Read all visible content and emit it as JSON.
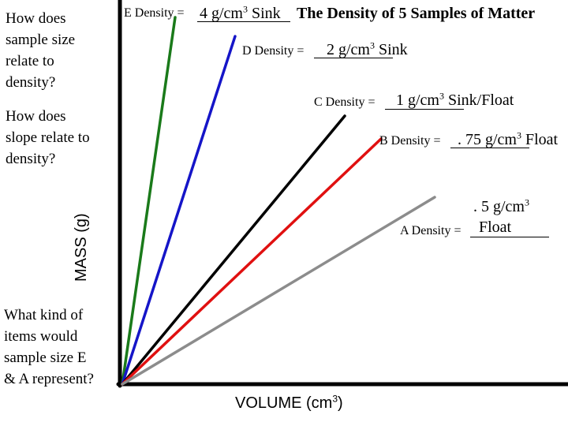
{
  "questions": {
    "q1": "How does\nsample size\nrelate to\ndensity?",
    "q2": "How does\nslope relate to\ndensity?",
    "q3": "What kind of\nitems would\nsample size E\n& A represent?"
  },
  "chart_data": {
    "type": "line",
    "title": "The Density of 5 Samples of Matter",
    "xlabel": "VOLUME (cm",
    "xlabel_sup": "3",
    "xlabel_close": ")",
    "ylabel": "MASS (g)",
    "unit_base": "g/cm",
    "unit_sup": "3",
    "series": [
      {
        "name": "E",
        "label": "E Density = ",
        "density": "4",
        "result": "Sink",
        "color": "#1a7a1a"
      },
      {
        "name": "D",
        "label": "D Density = ",
        "density": "2",
        "result": "Sink",
        "color": "#1515c8"
      },
      {
        "name": "C",
        "label": "C Density = ",
        "density": "1",
        "result": "Sink/Float",
        "color": "#000000"
      },
      {
        "name": "B",
        "label": "B Density = ",
        "density": ". 75",
        "result": "Float",
        "color": "#e01010"
      },
      {
        "name": "A",
        "label": "A Density = ",
        "density": ". 5",
        "result": "Float",
        "color": "#8c8c8c"
      }
    ],
    "grid": false,
    "legend": "none"
  }
}
